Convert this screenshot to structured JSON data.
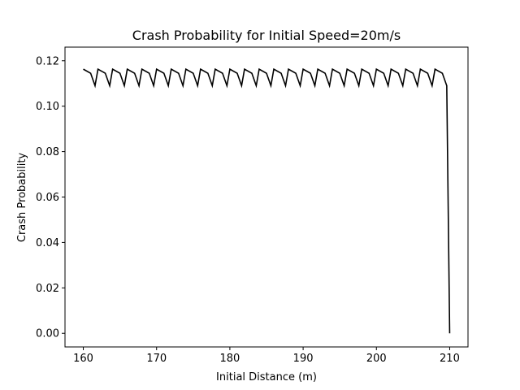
{
  "chart_data": {
    "type": "line",
    "title": "Crash Probability for Initial Speed=20m/s",
    "xlabel": "Initial Distance (m)",
    "ylabel": "Crash Probability",
    "xlim": [
      157.5,
      212.5
    ],
    "ylim": [
      -0.006,
      0.126
    ],
    "xticks": [
      160,
      170,
      180,
      190,
      200,
      210
    ],
    "xtick_labels": [
      "160",
      "170",
      "180",
      "190",
      "200",
      "210"
    ],
    "yticks": [
      0.0,
      0.02,
      0.04,
      0.06,
      0.08,
      0.1,
      0.12
    ],
    "ytick_labels": [
      "0.00",
      "0.02",
      "0.04",
      "0.06",
      "0.08",
      "0.10",
      "0.12"
    ],
    "grid": false,
    "line_color": "#000000",
    "series": [
      {
        "x": [
          160,
          161,
          161.6,
          162,
          163,
          163.6,
          164,
          165,
          165.6,
          166,
          167,
          167.6,
          168,
          169,
          169.6,
          170,
          171,
          171.6,
          172,
          173,
          173.6,
          174,
          175,
          175.6,
          176,
          177,
          177.6,
          178,
          179,
          179.6,
          180,
          181,
          181.6,
          182,
          183,
          183.6,
          184,
          185,
          185.6,
          186,
          187,
          187.6,
          188,
          189,
          189.6,
          190,
          191,
          191.6,
          192,
          193,
          193.6,
          194,
          195,
          195.6,
          196,
          197,
          197.6,
          198,
          199,
          199.6,
          200,
          201,
          201.6,
          202,
          203,
          203.6,
          204,
          205,
          205.6,
          206,
          207,
          207.6,
          208,
          209,
          209.6,
          210
        ],
        "y": [
          0.1163,
          0.1145,
          0.109,
          0.1163,
          0.1145,
          0.109,
          0.1163,
          0.1145,
          0.109,
          0.1163,
          0.1145,
          0.109,
          0.1163,
          0.1145,
          0.109,
          0.1163,
          0.1145,
          0.109,
          0.1163,
          0.1145,
          0.109,
          0.1163,
          0.1145,
          0.109,
          0.1163,
          0.1145,
          0.109,
          0.1163,
          0.1145,
          0.109,
          0.1163,
          0.1145,
          0.109,
          0.1163,
          0.1145,
          0.109,
          0.1163,
          0.1145,
          0.109,
          0.1163,
          0.1145,
          0.109,
          0.1163,
          0.1145,
          0.109,
          0.1163,
          0.1145,
          0.109,
          0.1163,
          0.1145,
          0.109,
          0.1163,
          0.1145,
          0.109,
          0.1163,
          0.1145,
          0.109,
          0.1163,
          0.1145,
          0.109,
          0.1163,
          0.1145,
          0.109,
          0.1163,
          0.1145,
          0.109,
          0.1163,
          0.1145,
          0.109,
          0.1163,
          0.1145,
          0.109,
          0.1163,
          0.1145,
          0.109,
          0.0
        ]
      }
    ]
  }
}
